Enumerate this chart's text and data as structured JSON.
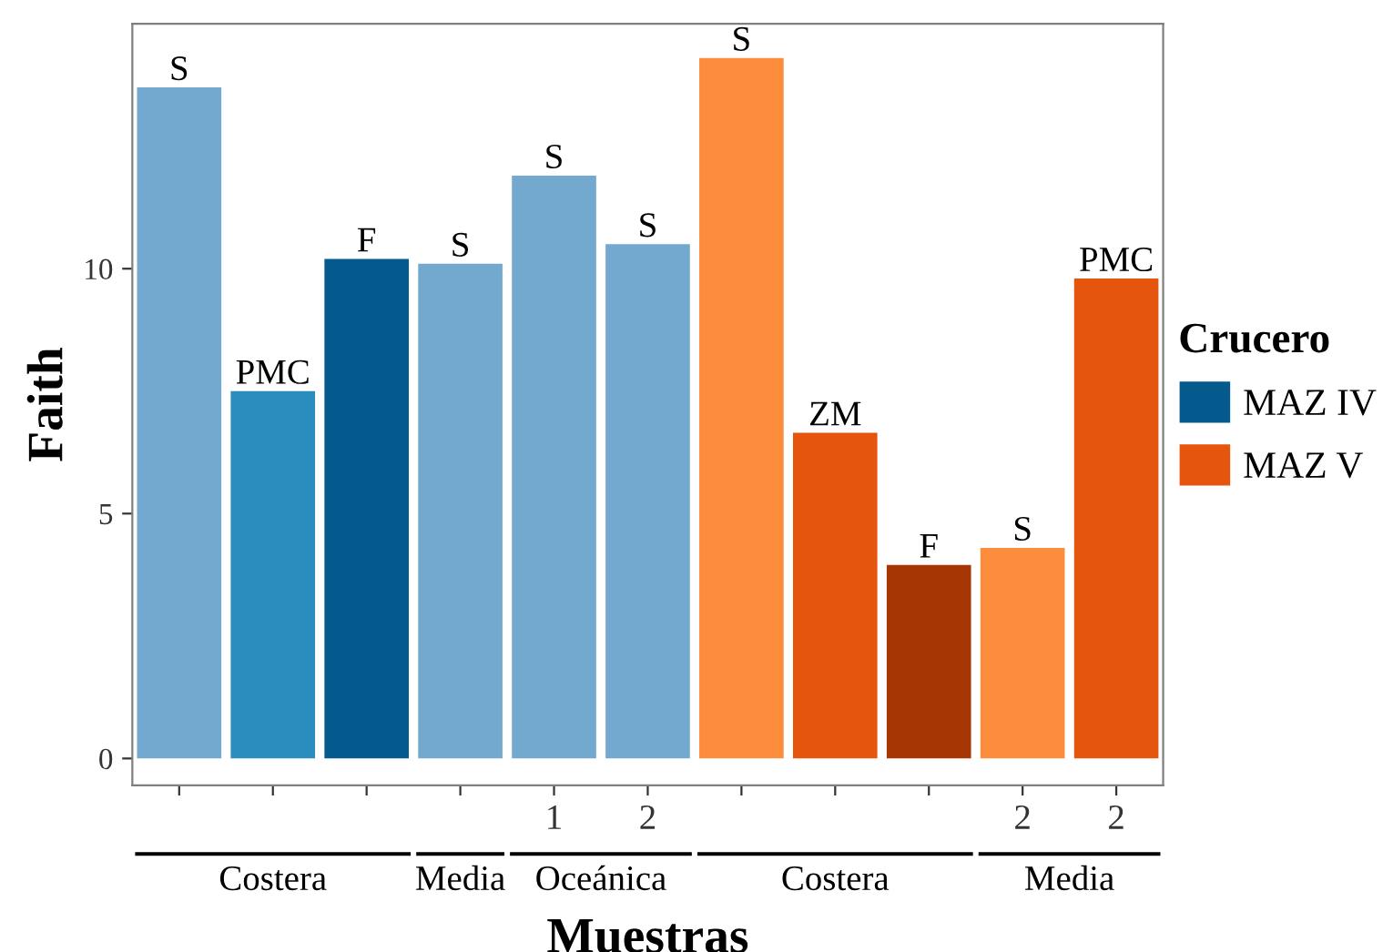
{
  "chart_data": {
    "type": "bar",
    "categories": [
      null,
      null,
      null,
      null,
      "1",
      "2",
      null,
      null,
      null,
      "2",
      "2"
    ],
    "series": [
      {
        "name": "MAZ IV",
        "color": "#045a8d",
        "colors": [
          "#74a9cf",
          "#2b8cbe",
          "#045a8d",
          "#74a9cf",
          "#74a9cf",
          "#74a9cf",
          null,
          null,
          null,
          null,
          null
        ],
        "values": [
          13.7,
          7.5,
          10.2,
          10.1,
          11.9,
          10.5,
          null,
          null,
          null,
          null,
          null
        ],
        "value_labels": [
          "S",
          "PMC",
          "F",
          "S",
          "S",
          "S",
          null,
          null,
          null,
          null,
          null
        ]
      },
      {
        "name": "MAZ V",
        "color": "#e6550d",
        "colors": [
          null,
          null,
          null,
          null,
          null,
          null,
          "#fd8d3c",
          "#e6550d",
          "#a63603",
          "#fd8d3c",
          "#e6550d"
        ],
        "values": [
          null,
          null,
          null,
          null,
          null,
          null,
          14.3,
          6.65,
          3.95,
          4.3,
          9.8
        ],
        "value_labels": [
          null,
          null,
          null,
          null,
          null,
          null,
          "S",
          "ZM",
          "F",
          "S",
          "PMC"
        ]
      }
    ],
    "xlabel": "Muestras",
    "ylabel": "Faith",
    "legend_title": "Crucero",
    "annotations": [
      "Costera",
      "Media",
      "Oceánica",
      "Costera",
      "Media"
    ],
    "ylim": [
      -0.55,
      15
    ],
    "yticks": [
      0,
      5,
      10
    ],
    "grid": false,
    "legend": "right"
  }
}
